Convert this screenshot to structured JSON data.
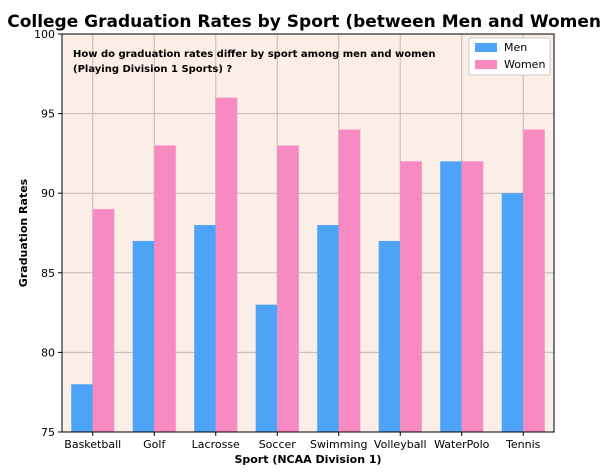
{
  "chart_data": {
    "type": "bar",
    "title": "College Graduation Rates by Sport (between Men and Women)",
    "xlabel": "Sport (NCAA Division 1)",
    "ylabel": "Graduation Rates",
    "annotation": [
      "How do graduation rates differ by sport among men and women",
      "(Playing Division 1 Sports) ?"
    ],
    "categories": [
      "Basketball",
      "Golf",
      "Lacrosse",
      "Soccer",
      "Swimming",
      "Volleyball",
      "WaterPolo",
      "Tennis"
    ],
    "series": [
      {
        "name": "Men",
        "color": "#4da3f5",
        "values": [
          78,
          87,
          88,
          83,
          88,
          87,
          92,
          90
        ]
      },
      {
        "name": "Women",
        "color": "#f78ac0",
        "values": [
          89,
          93,
          96,
          93,
          94,
          92,
          92,
          94
        ]
      }
    ],
    "ylim": [
      75,
      100
    ],
    "yticks": [
      75,
      80,
      85,
      90,
      95,
      100
    ],
    "grid": true,
    "legend_position": "top-right",
    "background_color": "#faeee6",
    "grid_color": "#c0b8b4"
  }
}
